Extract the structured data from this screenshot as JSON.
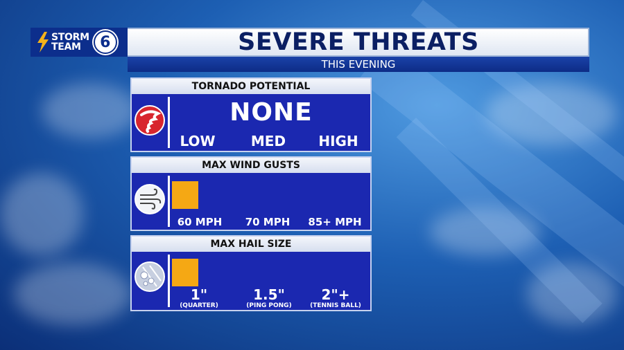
{
  "logo": {
    "line1": "STORM",
    "line2": "TEAM",
    "number": "6"
  },
  "header": {
    "title": "SEVERE THREATS",
    "subtitle": "THIS EVENING"
  },
  "tornado": {
    "heading": "TORNADO POTENTIAL",
    "value": "NONE",
    "levels": [
      "LOW",
      "MED",
      "HIGH"
    ],
    "icon": "tornado-icon"
  },
  "wind": {
    "heading": "MAX WIND GUSTS",
    "levels": [
      "60 MPH",
      "70 MPH",
      "85+ MPH"
    ],
    "icon": "wind-icon",
    "fill_level": 1
  },
  "hail": {
    "heading": "MAX HAIL SIZE",
    "levels": [
      "1\"",
      "1.5\"",
      "2\"+"
    ],
    "sublabels": [
      "(QUARTER)",
      "(PING PONG)",
      "(TENNIS BALL)"
    ],
    "icon": "hail-icon",
    "fill_level": 1
  },
  "colors": {
    "panel": "#1b28b0",
    "fill": "#f5a814",
    "header_text": "#0b1f63",
    "tornado_icon_bg": "#d8262e"
  }
}
